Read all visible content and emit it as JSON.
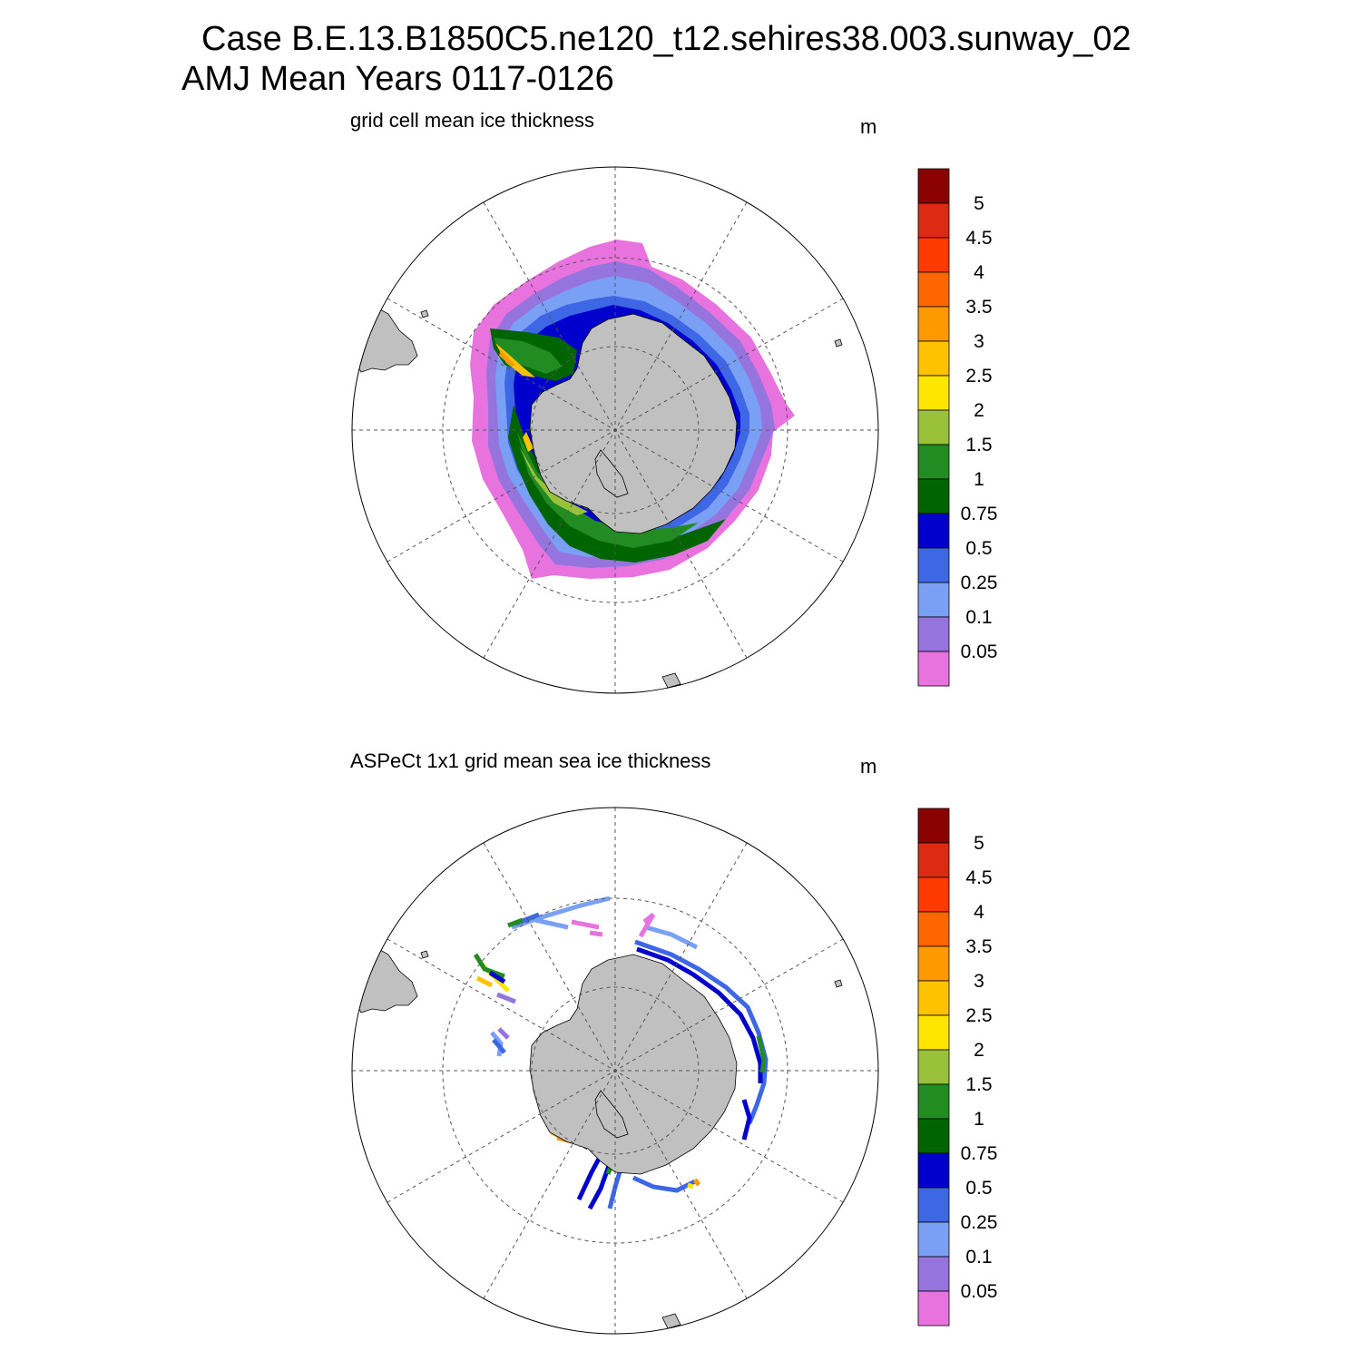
{
  "header": {
    "line1": "Case B.E.13.B1850C5.ne120_t12.sehires38.003.sunway_02",
    "line2": "AMJ Mean   Years 0117-0126"
  },
  "panels": [
    {
      "title": "grid cell mean ice thickness",
      "units": "m",
      "field": "model",
      "legend_placement": "right"
    },
    {
      "title": "ASPeCt 1x1 grid mean sea ice thickness",
      "units": "m",
      "field": "observations",
      "legend_placement": "right"
    }
  ],
  "colorbar": {
    "labels": [
      "5",
      "4.5",
      "4",
      "3.5",
      "3",
      "2.5",
      "2",
      "1.5",
      "1",
      "0.75",
      "0.5",
      "0.25",
      "0.1",
      "0.05"
    ],
    "colors": [
      "#8b0000",
      "#dd2a12",
      "#ff3a00",
      "#ff6600",
      "#ff9900",
      "#ffc200",
      "#ffe600",
      "#99c13a",
      "#228b22",
      "#006400",
      "#0000cd",
      "#3e67e6",
      "#7aa0f5",
      "#9575dd",
      "#e872de"
    ]
  },
  "map": {
    "projection": "south polar stereographic",
    "land_color": "#c0c0c0",
    "grid": "dashed"
  }
}
